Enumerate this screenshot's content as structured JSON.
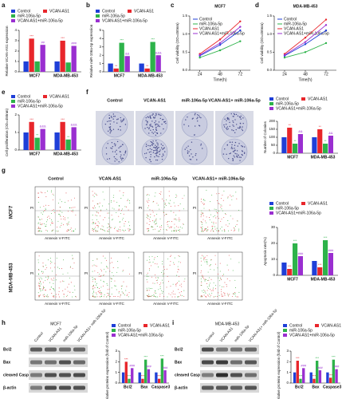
{
  "chart_data": [
    {
      "type": "bar",
      "ylabel": "Relative VCAN-AS1 expression",
      "categories": [
        "MCF7",
        "MDA-MB-453"
      ],
      "ylim": [
        0,
        4
      ],
      "yticks": [
        0,
        1,
        2,
        3,
        4
      ],
      "series": [
        {
          "name": "Control",
          "color": "#1f3fd8",
          "values": [
            1,
            1
          ]
        },
        {
          "name": "VCAN-AS1",
          "color": "#e8262b",
          "values": [
            3.2,
            3.0
          ],
          "sig": [
            "***",
            "***"
          ]
        },
        {
          "name": "miR-106a-5p",
          "color": "#2db34a",
          "values": [
            1,
            0.9
          ]
        },
        {
          "name": "VCAN-AS1+miR-106a-5p",
          "color": "#9a2fd0",
          "values": [
            2.6,
            2.5
          ],
          "sig": [
            "##",
            "###"
          ]
        }
      ]
    },
    {
      "type": "bar",
      "ylabel": "Relative miR-106a-5p expression",
      "categories": [
        "MCF7",
        "MDA-MB-453"
      ],
      "ylim": [
        0,
        5
      ],
      "yticks": [
        0,
        1,
        2,
        3,
        4,
        5
      ],
      "series": [
        {
          "name": "Control",
          "color": "#1f3fd8",
          "values": [
            1,
            1
          ]
        },
        {
          "name": "VCAN-AS1",
          "color": "#e8262b",
          "values": [
            0.4,
            0.4
          ],
          "sig": [
            "**",
            "**"
          ]
        },
        {
          "name": "miR-106a-5p",
          "color": "#2db34a",
          "values": [
            3.5,
            3.6
          ],
          "sig": [
            "***",
            "***"
          ]
        },
        {
          "name": "VCAN-AS1+miR-106a-5p",
          "color": "#9a2fd0",
          "values": [
            1.9,
            2.0
          ],
          "sig": [
            "&&",
            "&&&"
          ]
        }
      ]
    },
    {
      "type": "line",
      "title": "MCF7",
      "xlabel": "Time(h)",
      "ylabel": "Cell viability (OD=450nm)",
      "x": [
        24,
        48,
        72
      ],
      "xlim": [
        12,
        84
      ],
      "xticks": [
        24,
        48,
        72
      ],
      "ylim": [
        0,
        1.5
      ],
      "yticks": [
        {
          "value": 0,
          "label": "0.0"
        },
        {
          "value": 0.5,
          "label": "0.5"
        },
        {
          "value": 1,
          "label": "1.0"
        },
        {
          "value": 1.5,
          "label": "1.5"
        }
      ],
      "series": [
        {
          "name": "Control",
          "color": "#1f3fd8",
          "values": [
            0.4,
            0.7,
            1.1
          ]
        },
        {
          "name": "miR-106a-5p",
          "color": "#2db34a",
          "values": [
            0.35,
            0.55,
            0.8
          ]
        },
        {
          "name": "VCAN-AS1",
          "color": "#e8262b",
          "values": [
            0.45,
            0.85,
            1.35
          ]
        },
        {
          "name": "VCAN-AS1+miR-106a-5p",
          "color": "#9a2fd0",
          "values": [
            0.42,
            0.75,
            1.2
          ]
        }
      ]
    },
    {
      "type": "line",
      "title": "MDA-MB-453",
      "xlabel": "Time(h)",
      "ylabel": "Cell viability (OD=450nm)",
      "x": [
        24,
        48,
        72
      ],
      "xlim": [
        12,
        84
      ],
      "xticks": [
        24,
        48,
        72
      ],
      "ylim": [
        0,
        1.5
      ],
      "yticks": [
        {
          "value": 0,
          "label": "0.0"
        },
        {
          "value": 0.5,
          "label": "0.5"
        },
        {
          "value": 1,
          "label": "1.0"
        },
        {
          "value": 1.5,
          "label": "1.5"
        }
      ],
      "series": [
        {
          "name": "Control",
          "color": "#1f3fd8",
          "values": [
            0.4,
            0.72,
            1.1
          ]
        },
        {
          "name": "miR-106a-5p",
          "color": "#2db34a",
          "values": [
            0.35,
            0.5,
            0.75
          ]
        },
        {
          "name": "VCAN-AS1",
          "color": "#e8262b",
          "values": [
            0.45,
            0.9,
            1.4
          ]
        },
        {
          "name": "VCAN-AS1+miR-106a-5p",
          "color": "#9a2fd0",
          "values": [
            0.42,
            0.78,
            1.25
          ]
        }
      ]
    },
    {
      "type": "bar",
      "ylabel": "Cell proliferation (OD=450nm)",
      "categories": [
        "MCF7",
        "MDA-MB-453"
      ],
      "ylim": [
        0,
        2
      ],
      "yticks": [
        0,
        1,
        2
      ],
      "series": [
        {
          "name": "Control",
          "color": "#1f3fd8",
          "values": [
            1,
            1
          ]
        },
        {
          "name": "VCAN-AS1",
          "color": "#e8262b",
          "values": [
            1.6,
            1.6
          ],
          "sig": [
            "***",
            "***"
          ]
        },
        {
          "name": "miR-106a-5p",
          "color": "#2db34a",
          "values": [
            0.7,
            0.6
          ],
          "sig": [
            "**",
            "**"
          ]
        },
        {
          "name": "VCAN-AS1+miR-106a-5p",
          "color": "#9a2fd0",
          "values": [
            1.2,
            1.3
          ],
          "sig": [
            "&&&",
            "&&&"
          ]
        }
      ]
    },
    {
      "type": "bar",
      "ylabel": "Number of Colonies",
      "categories": [
        "MCF7",
        "MDA-MB-453"
      ],
      "ylim": [
        0,
        200
      ],
      "yticks": [
        0,
        50,
        100,
        150,
        200
      ],
      "series": [
        {
          "name": "Control",
          "color": "#1f3fd8",
          "values": [
            100,
            100
          ]
        },
        {
          "name": "VCAN-AS1",
          "color": "#e8262b",
          "values": [
            160,
            150
          ],
          "sig": [
            "**",
            "**"
          ]
        },
        {
          "name": "miR-106a-5p",
          "color": "#2db34a",
          "values": [
            60,
            60
          ],
          "sig": [
            "**",
            "**"
          ]
        },
        {
          "name": "VCAN-AS1+miR-106a-5p",
          "color": "#9a2fd0",
          "values": [
            120,
            110
          ],
          "sig": [
            "&&",
            "&&"
          ]
        }
      ]
    },
    {
      "type": "bar",
      "ylabel": "Apoptosis rate(%)",
      "categories": [
        "MCF7",
        "MDA-MB-453"
      ],
      "ylim": [
        0,
        30
      ],
      "yticks": [
        0,
        10,
        20,
        30
      ],
      "series": [
        {
          "name": "Control",
          "color": "#1f3fd8",
          "values": [
            8,
            9
          ]
        },
        {
          "name": "VCAN-AS1",
          "color": "#e8262b",
          "values": [
            4,
            5
          ],
          "sig": [
            "***",
            "***"
          ]
        },
        {
          "name": "miR-106a-5p",
          "color": "#2db34a",
          "values": [
            20,
            22
          ],
          "sig": [
            "***",
            "***"
          ]
        },
        {
          "name": "VCAN-AS1+miR-106a-5p",
          "color": "#9a2fd0",
          "values": [
            12,
            14
          ],
          "sig": [
            "###",
            "###"
          ]
        }
      ]
    },
    {
      "type": "bar",
      "ylabel": "Relative proteins expression (fold of Control)",
      "categories": [
        "Bcl2",
        "Bax",
        "Caspase3"
      ],
      "ylim": [
        0,
        3
      ],
      "yticks": [
        0,
        1,
        2,
        3
      ],
      "series": [
        {
          "name": "Control",
          "color": "#1f3fd8",
          "values": [
            1,
            1,
            1
          ]
        },
        {
          "name": "VCAN-AS1",
          "color": "#e8262b",
          "values": [
            2.0,
            0.4,
            0.4
          ],
          "sig": [
            "***",
            "***",
            "***"
          ]
        },
        {
          "name": "miR-106a-5p",
          "color": "#2db34a",
          "values": [
            0.4,
            2.2,
            2.3
          ],
          "sig": [
            "***",
            "***",
            "***"
          ]
        },
        {
          "name": "VCAN-AS1+miR-106a-5p",
          "color": "#9a2fd0",
          "values": [
            1.4,
            1.3,
            1.2
          ],
          "sig": [
            "###",
            "###",
            "###"
          ]
        }
      ]
    },
    {
      "type": "bar",
      "ylabel": "Relative proteins expression (fold of Control)",
      "categories": [
        "Bcl2",
        "Bax",
        "Caspase3"
      ],
      "ylim": [
        0,
        3
      ],
      "yticks": [
        0,
        1,
        2,
        3
      ],
      "series": [
        {
          "name": "Control",
          "color": "#1f3fd8",
          "values": [
            1,
            1,
            1
          ]
        },
        {
          "name": "VCAN-AS1",
          "color": "#e8262b",
          "values": [
            2.1,
            0.4,
            0.5
          ],
          "sig": [
            "***",
            "***",
            "***"
          ]
        },
        {
          "name": "miR-106a-5p",
          "color": "#2db34a",
          "values": [
            0.4,
            2.1,
            2.2
          ],
          "sig": [
            "***",
            "***",
            "***"
          ]
        },
        {
          "name": "VCAN-AS1+miR-106a-5p",
          "color": "#9a2fd0",
          "values": [
            1.4,
            1.2,
            1.3
          ],
          "sig": [
            "###",
            "###",
            "###"
          ]
        }
      ]
    }
  ],
  "panels": {
    "letters": [
      "a",
      "b",
      "c",
      "d",
      "e",
      "f",
      "g",
      "h",
      "i"
    ],
    "f": {
      "columns": [
        "Control",
        "VCAN-AS1",
        "miR-106a-5p",
        "VCAN-AS1+ miR-106a-5p"
      ]
    },
    "g": {
      "columns": [
        "Control",
        "VCAN-AS1",
        "miR-106a-5p",
        "VCAN-AS1+ miR-106a-5p"
      ],
      "rows": [
        "MCF7",
        "MDA-MB-453"
      ],
      "x_axis": "Annexin V-FITC",
      "y_axis": "PI"
    },
    "h": {
      "title": "MCF7",
      "lanes": [
        "Control",
        "VCAN-AS1",
        "miR-106a-5p",
        "VCAN-AS1+ miR-106a-5p"
      ],
      "bands": [
        "Bcl2",
        "Bax",
        "cleaved Caspase3",
        "β-actin"
      ]
    },
    "i": {
      "title": "MDA-MB-453",
      "lanes": [
        "Control",
        "VCAN-AS1",
        "miR-106a-5p",
        "VCAN-AS1+ miR-106a-5p"
      ],
      "bands": [
        "Bcl2",
        "Bax",
        "cleaved Caspase3",
        "β-actin"
      ]
    }
  }
}
